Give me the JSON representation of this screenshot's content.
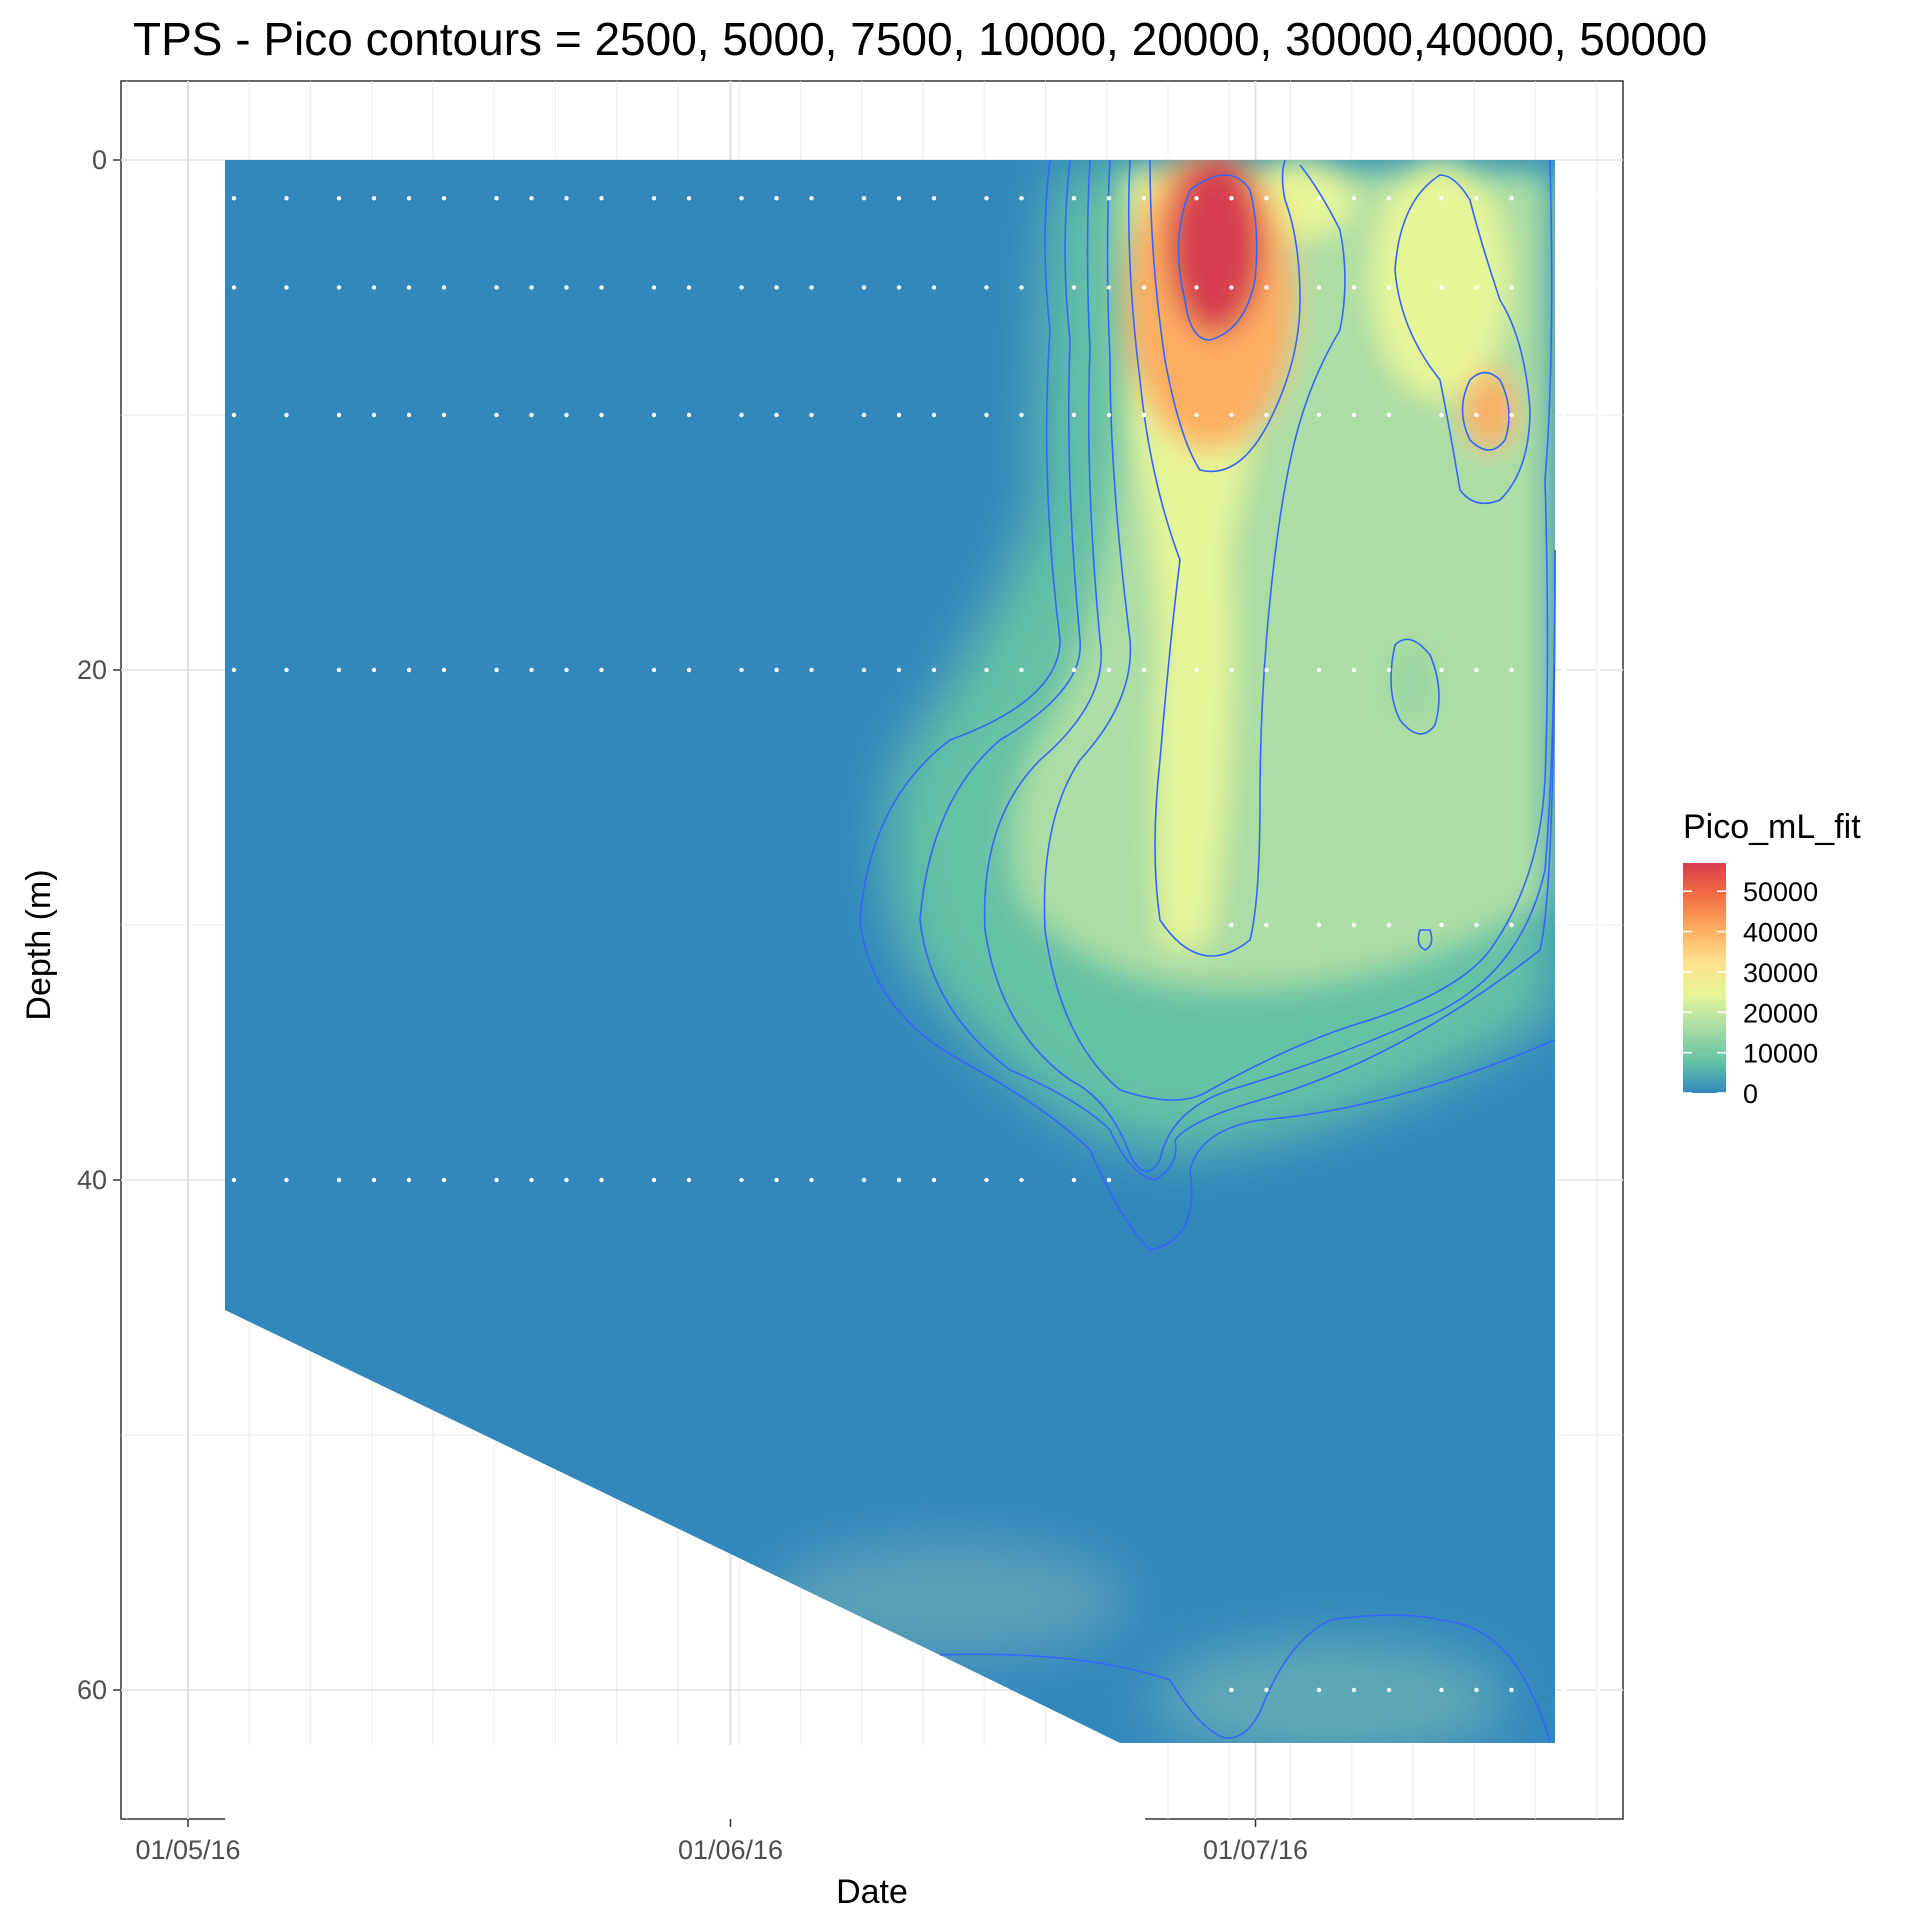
{
  "chart_data": {
    "type": "heatmap",
    "title": "TPS - Pico contours = 2500, 5000, 7500, 10000, 20000, 30000,40000, 50000",
    "xlabel": "Date",
    "ylabel": "Depth (m)",
    "x_ticks": [
      "01/05/16",
      "01/06/16",
      "01/07/16"
    ],
    "y_ticks": [
      0,
      20,
      40,
      60
    ],
    "y_reversed": true,
    "ylim": [
      0,
      65
    ],
    "xlim": [
      "2016-05-01",
      "2016-07-20"
    ],
    "grid": true,
    "legend": {
      "title": "Pico_mL_fit",
      "position": "right",
      "breaks": [
        50000,
        40000,
        30000,
        20000,
        10000,
        0
      ],
      "colors": [
        "#3288bd",
        "#66c2a5",
        "#abdda4",
        "#e6f598",
        "#fee08b",
        "#fdae61",
        "#f46d43",
        "#d53e4f"
      ]
    },
    "contour_levels": [
      2500,
      5000,
      7500,
      10000,
      20000,
      30000,
      40000,
      50000
    ],
    "contour_color": "#3366ff",
    "sample_depths": [
      1.5,
      5,
      10,
      20,
      30,
      40,
      60
    ],
    "hotspots": [
      {
        "date": "2016-06-29",
        "depth": 5,
        "value": 55000
      },
      {
        "date": "2016-06-28",
        "depth": 10,
        "value": 38000
      },
      {
        "date": "2016-07-15",
        "depth": 10,
        "value": 36000
      },
      {
        "date": "2016-07-01",
        "depth": 25,
        "value": 25000
      },
      {
        "date": "2016-07-11",
        "depth": 20,
        "value": 15000
      },
      {
        "date": "2016-07-10",
        "depth": 60,
        "value": 9000
      }
    ]
  }
}
